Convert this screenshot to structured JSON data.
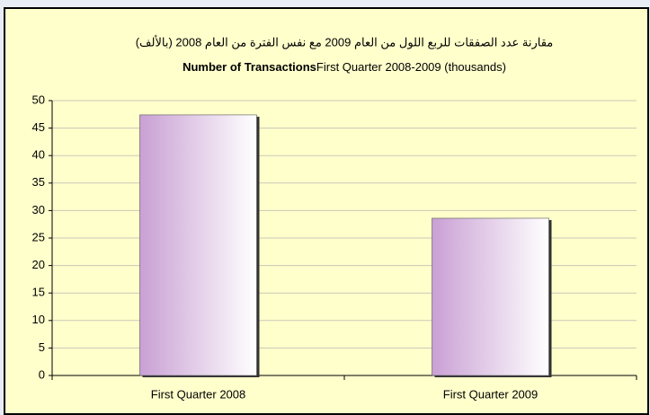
{
  "chart_data": {
    "type": "bar",
    "title_arabic": "مقارنة عدد الصفقات للربع اللول من العام 2009 مع نفس الفترة من العام 2008 (بالألف)",
    "title_bold": "Number of Transactions",
    "title_rest": "First Quarter 2008-2009  (thousands)",
    "categories": [
      "First Quarter 2008",
      "First Quarter 2009"
    ],
    "values": [
      47.4,
      28.6
    ],
    "color": "#c9a0d4",
    "ylim": [
      0,
      50
    ],
    "yticks": [
      0,
      5,
      10,
      15,
      20,
      25,
      30,
      35,
      40,
      45,
      50
    ],
    "grid": true
  }
}
